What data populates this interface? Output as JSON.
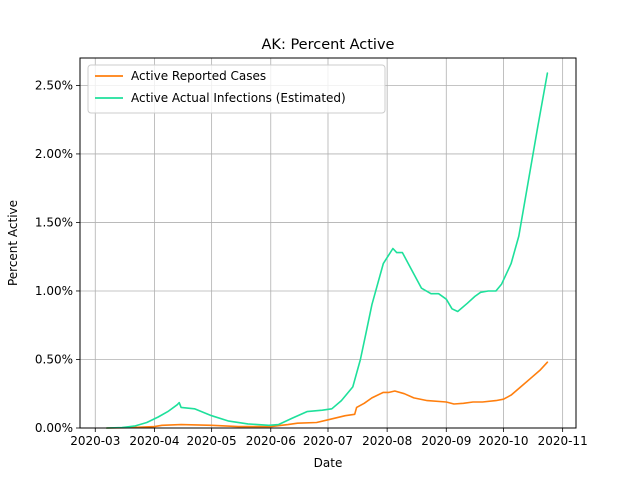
{
  "chart_data": {
    "type": "line",
    "title": "AK: Percent Active",
    "xlabel": "Date",
    "ylabel": "Percent Active",
    "x_ticks": [
      "2020-03",
      "2020-04",
      "2020-05",
      "2020-06",
      "2020-07",
      "2020-08",
      "2020-09",
      "2020-10",
      "2020-11"
    ],
    "y_ticks": [
      "0.00%",
      "0.50%",
      "1.00%",
      "1.50%",
      "2.00%",
      "2.50%"
    ],
    "xlim": [
      "2020-02-22",
      "2020-11-08"
    ],
    "ylim": [
      0,
      2.7
    ],
    "grid": true,
    "legend_position": "top-left",
    "series": [
      {
        "name": "Active Reported Cases",
        "color": "#ff7f0e",
        "points": [
          [
            "2020-03-07",
            0.0
          ],
          [
            "2020-03-20",
            0.003
          ],
          [
            "2020-04-01",
            0.01
          ],
          [
            "2020-04-05",
            0.02
          ],
          [
            "2020-04-15",
            0.025
          ],
          [
            "2020-05-01",
            0.02
          ],
          [
            "2020-05-15",
            0.01
          ],
          [
            "2020-06-01",
            0.01
          ],
          [
            "2020-06-10",
            0.025
          ],
          [
            "2020-06-15",
            0.035
          ],
          [
            "2020-06-25",
            0.04
          ],
          [
            "2020-07-01",
            0.06
          ],
          [
            "2020-07-10",
            0.09
          ],
          [
            "2020-07-15",
            0.1
          ],
          [
            "2020-07-16",
            0.15
          ],
          [
            "2020-07-20",
            0.18
          ],
          [
            "2020-07-24",
            0.22
          ],
          [
            "2020-07-30",
            0.26
          ],
          [
            "2020-08-02",
            0.26
          ],
          [
            "2020-08-05",
            0.27
          ],
          [
            "2020-08-10",
            0.25
          ],
          [
            "2020-08-15",
            0.22
          ],
          [
            "2020-08-22",
            0.2
          ],
          [
            "2020-09-01",
            0.19
          ],
          [
            "2020-09-05",
            0.175
          ],
          [
            "2020-09-10",
            0.18
          ],
          [
            "2020-09-15",
            0.19
          ],
          [
            "2020-09-20",
            0.19
          ],
          [
            "2020-09-27",
            0.2
          ],
          [
            "2020-10-01",
            0.21
          ],
          [
            "2020-10-05",
            0.24
          ],
          [
            "2020-10-10",
            0.3
          ],
          [
            "2020-10-15",
            0.36
          ],
          [
            "2020-10-20",
            0.42
          ],
          [
            "2020-10-24",
            0.48
          ]
        ]
      },
      {
        "name": "Active Actual Infections (Estimated)",
        "color": "#1ee09b",
        "points": [
          [
            "2020-03-07",
            0.0
          ],
          [
            "2020-03-15",
            0.003
          ],
          [
            "2020-03-22",
            0.015
          ],
          [
            "2020-03-28",
            0.04
          ],
          [
            "2020-04-03",
            0.08
          ],
          [
            "2020-04-08",
            0.12
          ],
          [
            "2020-04-13",
            0.17
          ],
          [
            "2020-04-14",
            0.185
          ],
          [
            "2020-04-15",
            0.15
          ],
          [
            "2020-04-22",
            0.14
          ],
          [
            "2020-05-01",
            0.09
          ],
          [
            "2020-05-10",
            0.05
          ],
          [
            "2020-05-20",
            0.03
          ],
          [
            "2020-05-31",
            0.02
          ],
          [
            "2020-06-05",
            0.025
          ],
          [
            "2020-06-12",
            0.07
          ],
          [
            "2020-06-20",
            0.12
          ],
          [
            "2020-06-28",
            0.13
          ],
          [
            "2020-07-03",
            0.14
          ],
          [
            "2020-07-08",
            0.2
          ],
          [
            "2020-07-14",
            0.3
          ],
          [
            "2020-07-18",
            0.5
          ],
          [
            "2020-07-21",
            0.7
          ],
          [
            "2020-07-24",
            0.9
          ],
          [
            "2020-07-30",
            1.2
          ],
          [
            "2020-08-04",
            1.31
          ],
          [
            "2020-08-06",
            1.28
          ],
          [
            "2020-08-09",
            1.28
          ],
          [
            "2020-08-14",
            1.15
          ],
          [
            "2020-08-19",
            1.02
          ],
          [
            "2020-08-24",
            0.98
          ],
          [
            "2020-08-28",
            0.98
          ],
          [
            "2020-09-01",
            0.94
          ],
          [
            "2020-09-04",
            0.87
          ],
          [
            "2020-09-07",
            0.85
          ],
          [
            "2020-09-12",
            0.91
          ],
          [
            "2020-09-16",
            0.96
          ],
          [
            "2020-09-19",
            0.99
          ],
          [
            "2020-09-23",
            1.0
          ],
          [
            "2020-09-27",
            1.0
          ],
          [
            "2020-09-30",
            1.05
          ],
          [
            "2020-10-05",
            1.2
          ],
          [
            "2020-10-09",
            1.4
          ],
          [
            "2020-10-14",
            1.8
          ],
          [
            "2020-10-19",
            2.2
          ],
          [
            "2020-10-24",
            2.59
          ]
        ]
      }
    ]
  }
}
